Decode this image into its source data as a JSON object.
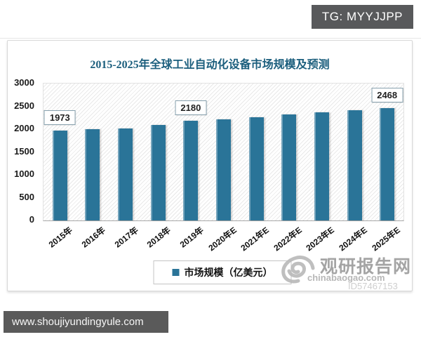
{
  "badge": {
    "text": "TG: MYYJJPP"
  },
  "footer": {
    "url": "www.shoujiyundingyule.com"
  },
  "watermark": {
    "brand": "观研报告网",
    "domain": "chinabaogao.com",
    "id_text": "ID57467153"
  },
  "chart_data": {
    "type": "bar",
    "title": "2015-2025年全球工业自动化设备市场规模及预测",
    "categories": [
      "2015年",
      "2016年",
      "2017年",
      "2018年",
      "2019年",
      "2020年E",
      "2021年E",
      "2022年E",
      "2023年E",
      "2024年E",
      "2025年E"
    ],
    "values": [
      1973,
      1995,
      2020,
      2100,
      2180,
      2215,
      2260,
      2320,
      2370,
      2420,
      2468
    ],
    "annotated_indices": [
      0,
      4,
      10
    ],
    "annotations": [
      {
        "category": "2015年",
        "value": 1973
      },
      {
        "category": "2019年",
        "value": 2180
      },
      {
        "category": "2025年E",
        "value": 2468
      }
    ],
    "legend": [
      "市场规模（亿美元）"
    ],
    "legend_position": "bottom",
    "xlabel": "",
    "ylabel": "",
    "ylim": [
      0,
      3000
    ],
    "yticks": [
      0,
      500,
      1000,
      1500,
      2000,
      2500,
      3000
    ],
    "grid": false,
    "bar_color": "#2a7498",
    "title_color": "#1b5e7d",
    "plot_background": "diagonal-hatch"
  }
}
